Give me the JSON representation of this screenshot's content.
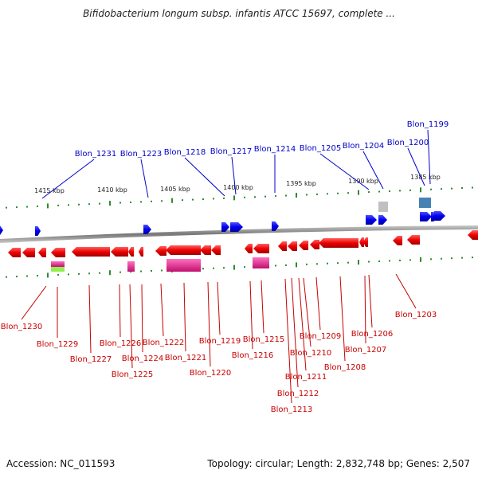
{
  "title": "Bifidobacterium longum subsp. infantis ATCC 15697, complete ...",
  "footer": {
    "accession": "Accession: NC_011593",
    "summary": "Topology: circular; Length: 2,832,748 bp; Genes: 2,507"
  },
  "colors": {
    "forward": "#1010e0",
    "reverse": "#e01010",
    "forward_label": "#0000c8",
    "reverse_label": "#c80000",
    "backbone": "#888888",
    "tick": "#2e8b2e",
    "pink": "#e0208a",
    "grey": "#c0c0c0",
    "steel": "#4682b4",
    "green": "#90ee50"
  },
  "axis_ticks": [
    "1415 kbp",
    "1410 kbp",
    "1405 kbp",
    "1400 kbp",
    "1395 kbp",
    "1390 kbp",
    "1385 kbp"
  ],
  "forward_genes": [
    "Blon_1231",
    "Blon_1223",
    "Blon_1218",
    "Blon_1217",
    "Blon_1214",
    "Blon_1205",
    "Blon_1204",
    "Blon_1200",
    "Blon_1199"
  ],
  "reverse_genes": [
    "Blon_1230",
    "Blon_1229",
    "Blon_1227",
    "Blon_1226",
    "Blon_1225",
    "Blon_1224",
    "Blon_1222",
    "Blon_1221",
    "Blon_1220",
    "Blon_1219",
    "Blon_1216",
    "Blon_1215",
    "Blon_1213",
    "Blon_1212",
    "Blon_1211",
    "Blon_1210",
    "Blon_1209",
    "Blon_1208",
    "Blon_1207",
    "Blon_1206",
    "Blon_1203"
  ]
}
